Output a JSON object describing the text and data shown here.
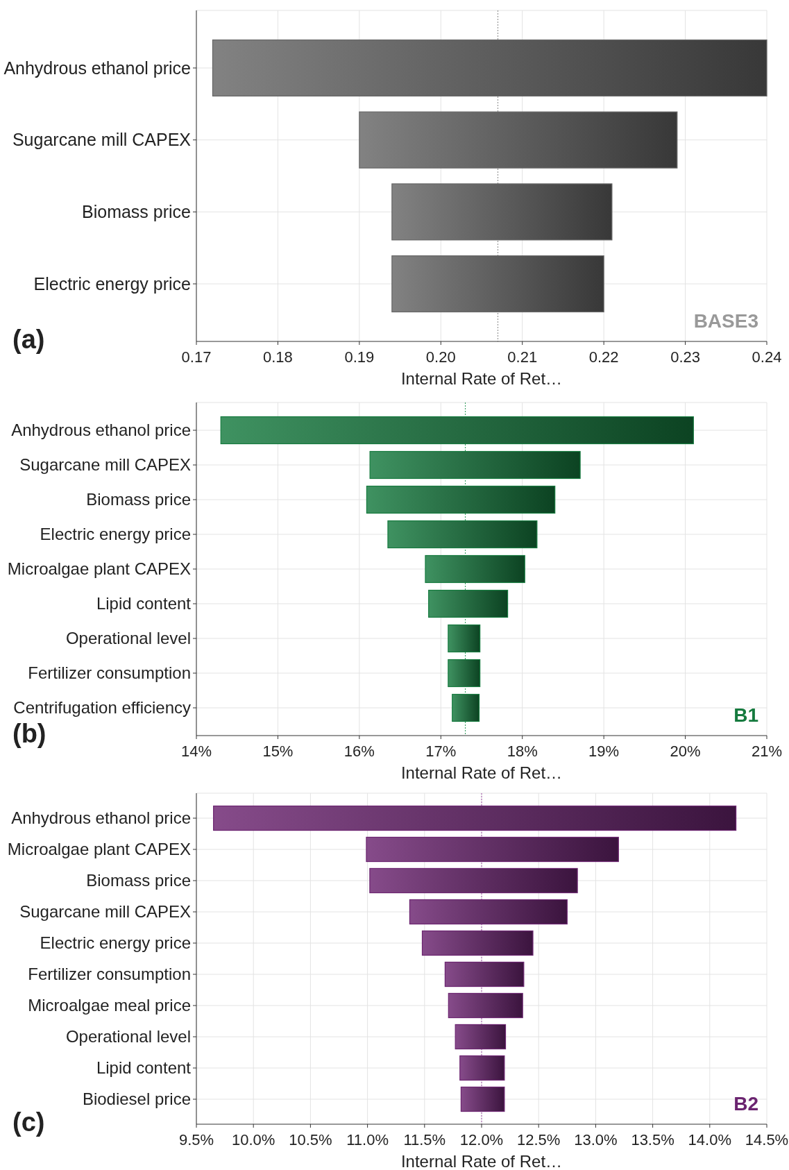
{
  "chart_data": [
    {
      "type": "bar",
      "orientation": "horizontal",
      "categories": [
        "Anhydrous ethanol price",
        "Sugarcane mill CAPEX",
        "Biomass price",
        "Electric energy price"
      ],
      "base": [
        0.172,
        0.19,
        0.194,
        0.194
      ],
      "values": [
        0.068,
        0.039,
        0.027,
        0.026
      ],
      "color": "#666666",
      "xlim": [
        0.17,
        0.24
      ],
      "xticks": [
        0.17,
        0.18,
        0.19,
        {
          "value": 0.2,
          "label": "0.20"
        },
        0.21,
        0.22,
        0.23,
        0.24
      ],
      "xlabel": "Internal Rate of Ret…",
      "grid": true,
      "ref_lines": [
        {
          "axis": "x",
          "value": 0.207,
          "color": "#888888",
          "line_style": "dotted"
        }
      ],
      "annotations": [
        "(a)",
        "BASE3"
      ]
    },
    {
      "type": "bar",
      "orientation": "horizontal",
      "categories": [
        "Anhydrous ethanol price",
        "Sugarcane mill CAPEX",
        "Biomass price",
        "Electric energy price",
        "Microalgae plant CAPEX",
        "Lipid content",
        "Operational level",
        "Fertilizer consumption",
        "Centrifugation efficiency"
      ],
      "base": [
        14.3,
        16.13,
        16.09,
        16.35,
        16.81,
        16.85,
        17.09,
        17.09,
        17.14
      ],
      "values": [
        5.8,
        2.58,
        2.31,
        1.83,
        1.22,
        0.97,
        0.39,
        0.39,
        0.33
      ],
      "color": "#157a3e",
      "xlim": [
        14,
        21
      ],
      "xticks": [
        {
          "value": 14,
          "label": "14%"
        },
        {
          "value": 15,
          "label": "15%"
        },
        {
          "value": 16,
          "label": "16%"
        },
        {
          "value": 17,
          "label": "17%"
        },
        {
          "value": 18,
          "label": "18%"
        },
        {
          "value": 19,
          "label": "19%"
        },
        {
          "value": 20,
          "label": "20%"
        },
        {
          "value": 21,
          "label": "21%"
        }
      ],
      "xlabel": "Internal Rate of Ret…",
      "grid": true,
      "ref_lines": [
        {
          "axis": "x",
          "value": 17.3,
          "color": "#2e9a5a",
          "line_style": "dotted"
        }
      ],
      "annotations": [
        "(b)",
        "B1"
      ]
    },
    {
      "type": "bar",
      "orientation": "horizontal",
      "categories": [
        "Anhydrous ethanol price",
        "Microalgae plant CAPEX",
        "Biomass price",
        "Sugarcane mill CAPEX",
        "Electric energy price",
        "Fertilizer consumption",
        "Microalgae meal price",
        "Operational level",
        "Lipid content",
        "Biodiesel price"
      ],
      "base": [
        9.65,
        10.99,
        11.02,
        11.37,
        11.48,
        11.68,
        11.71,
        11.77,
        11.81,
        11.82
      ],
      "values": [
        4.58,
        2.21,
        1.82,
        1.38,
        0.97,
        0.69,
        0.65,
        0.44,
        0.39,
        0.38
      ],
      "color": "#6b2470",
      "xlim": [
        9.5,
        14.5
      ],
      "xticks": [
        {
          "value": 9.5,
          "label": "9.5%"
        },
        {
          "value": 10,
          "label": "10.0%"
        },
        {
          "value": 10.5,
          "label": "10.5%"
        },
        {
          "value": 11,
          "label": "11.0%"
        },
        {
          "value": 11.5,
          "label": "11.5%"
        },
        {
          "value": 12,
          "label": "12.0%"
        },
        {
          "value": 12.5,
          "label": "12.5%"
        },
        {
          "value": 13,
          "label": "13.0%"
        },
        {
          "value": 13.5,
          "label": "13.5%"
        },
        {
          "value": 14,
          "label": "14.0%"
        },
        {
          "value": 14.5,
          "label": "14.5%"
        }
      ],
      "xlabel": "Internal Rate of Ret…",
      "grid": true,
      "ref_lines": [
        {
          "axis": "x",
          "value": 12.0,
          "color": "#a050a8",
          "line_style": "dotted"
        }
      ],
      "annotations": [
        "(c)",
        "B2"
      ]
    }
  ]
}
